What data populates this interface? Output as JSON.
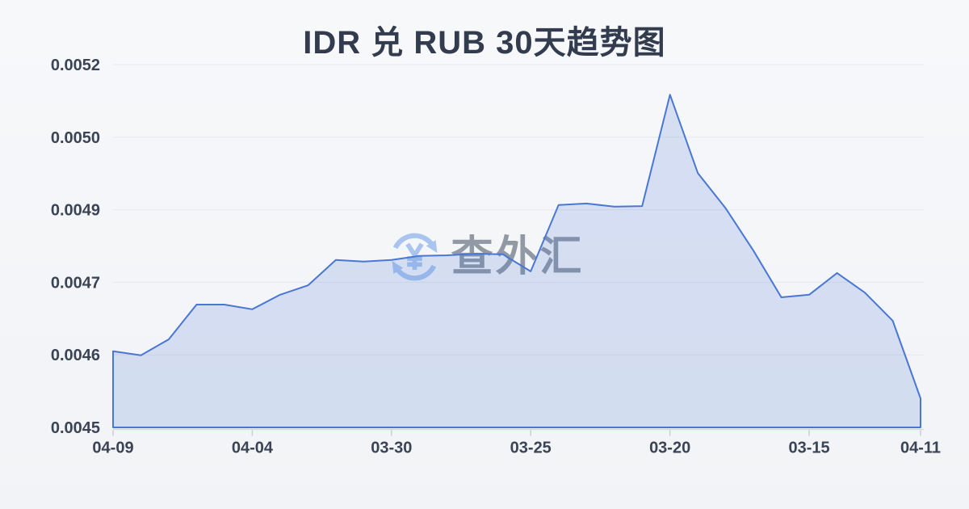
{
  "title": "IDR 兑 RUB 30天趋势图",
  "watermark": {
    "text": "查外汇",
    "icon": "currency-exchange-refresh-icon"
  },
  "colors": {
    "line": "#4a77d4",
    "area_fill": "rgba(74,119,212,0.18)",
    "grid": "#e5e8ed",
    "axis": "#d5d9e0",
    "tick": "#c9ced6",
    "label": "#3b4454",
    "title": "#333c4f",
    "watermark_blue": "#a9c5ef",
    "watermark_gray": "#9199a4",
    "background": "#f4f6f8"
  },
  "chart_data": {
    "type": "area",
    "title": "IDR 兑 RUB 30天趋势图",
    "grid": true,
    "legend": false,
    "x_axis": {
      "labels": [
        "04-09",
        "04-04",
        "03-30",
        "03-25",
        "03-20",
        "03-15",
        "04-11"
      ],
      "label_indices": [
        0,
        5,
        10,
        15,
        20,
        25,
        29
      ]
    },
    "y_axis": {
      "tick_labels_bottom_to_top": [
        "0.0045",
        "0.0046",
        "0.0047",
        "0.0049",
        "0.0050",
        "0.0052"
      ],
      "range": [
        0.00446,
        0.00516
      ]
    },
    "series": [
      {
        "name": "IDR 兑 RUB",
        "values": [
          0.004607,
          0.004599,
          0.00463,
          0.004697,
          0.004697,
          0.004688,
          0.004716,
          0.004734,
          0.004783,
          0.00478,
          0.004783,
          0.004791,
          0.004792,
          0.004795,
          0.004794,
          0.004761,
          0.004889,
          0.004892,
          0.004886,
          0.004887,
          0.005102,
          0.004951,
          0.004883,
          0.004801,
          0.004711,
          0.004716,
          0.004758,
          0.00472,
          0.004666,
          0.004516
        ]
      }
    ]
  }
}
